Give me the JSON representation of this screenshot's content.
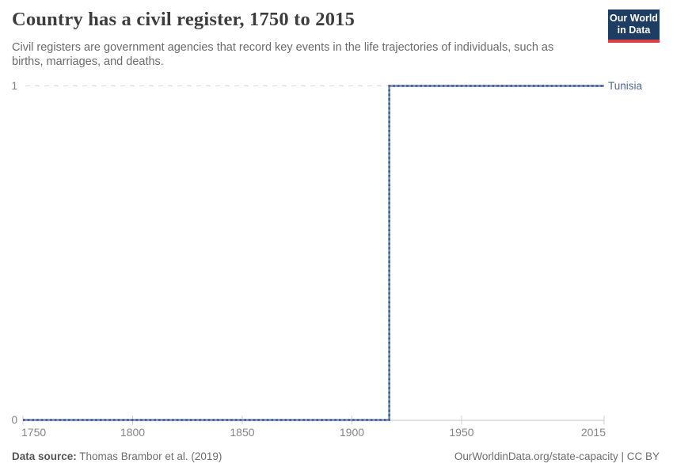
{
  "header": {
    "title": "Country has a civil register, 1750 to 2015",
    "subtitle_lines": [
      "Civil registers are government agencies that record key events in the life trajectories of individuals, such as",
      "births, marriages, and deaths."
    ],
    "logo": {
      "line1": "Our World",
      "line2": "in Data",
      "bg_color": "#1d3d63",
      "bar_color": "#dc3e44"
    }
  },
  "chart_data": {
    "type": "line",
    "style": "step",
    "title": "Country has a civil register, 1750 to 2015",
    "xlabel": "",
    "ylabel": "",
    "xlim": [
      1750,
      2015
    ],
    "ylim": [
      0,
      1
    ],
    "x_tick_values": [
      1750,
      1800,
      1850,
      1900,
      1950,
      2015
    ],
    "x_tick_labels": [
      "1750",
      "1800",
      "1850",
      "1900",
      "1950",
      "2015"
    ],
    "y_tick_labels": [
      "1",
      "0"
    ],
    "grid": "horizontal dashed gridline at y=1, solid axis line at y=0",
    "legend_position": "label at right end of line",
    "series": [
      {
        "name": "Tunisia",
        "color": "#4c6a9c",
        "points": [
          [
            1750,
            0
          ],
          [
            1917,
            0
          ],
          [
            1917,
            1
          ],
          [
            2015,
            1
          ]
        ]
      }
    ]
  },
  "footer": {
    "source_label": "Data source:",
    "source_text": " Thomas Brambor et al. (2019)",
    "license_text": "OurWorldinData.org/state-capacity | CC BY"
  }
}
